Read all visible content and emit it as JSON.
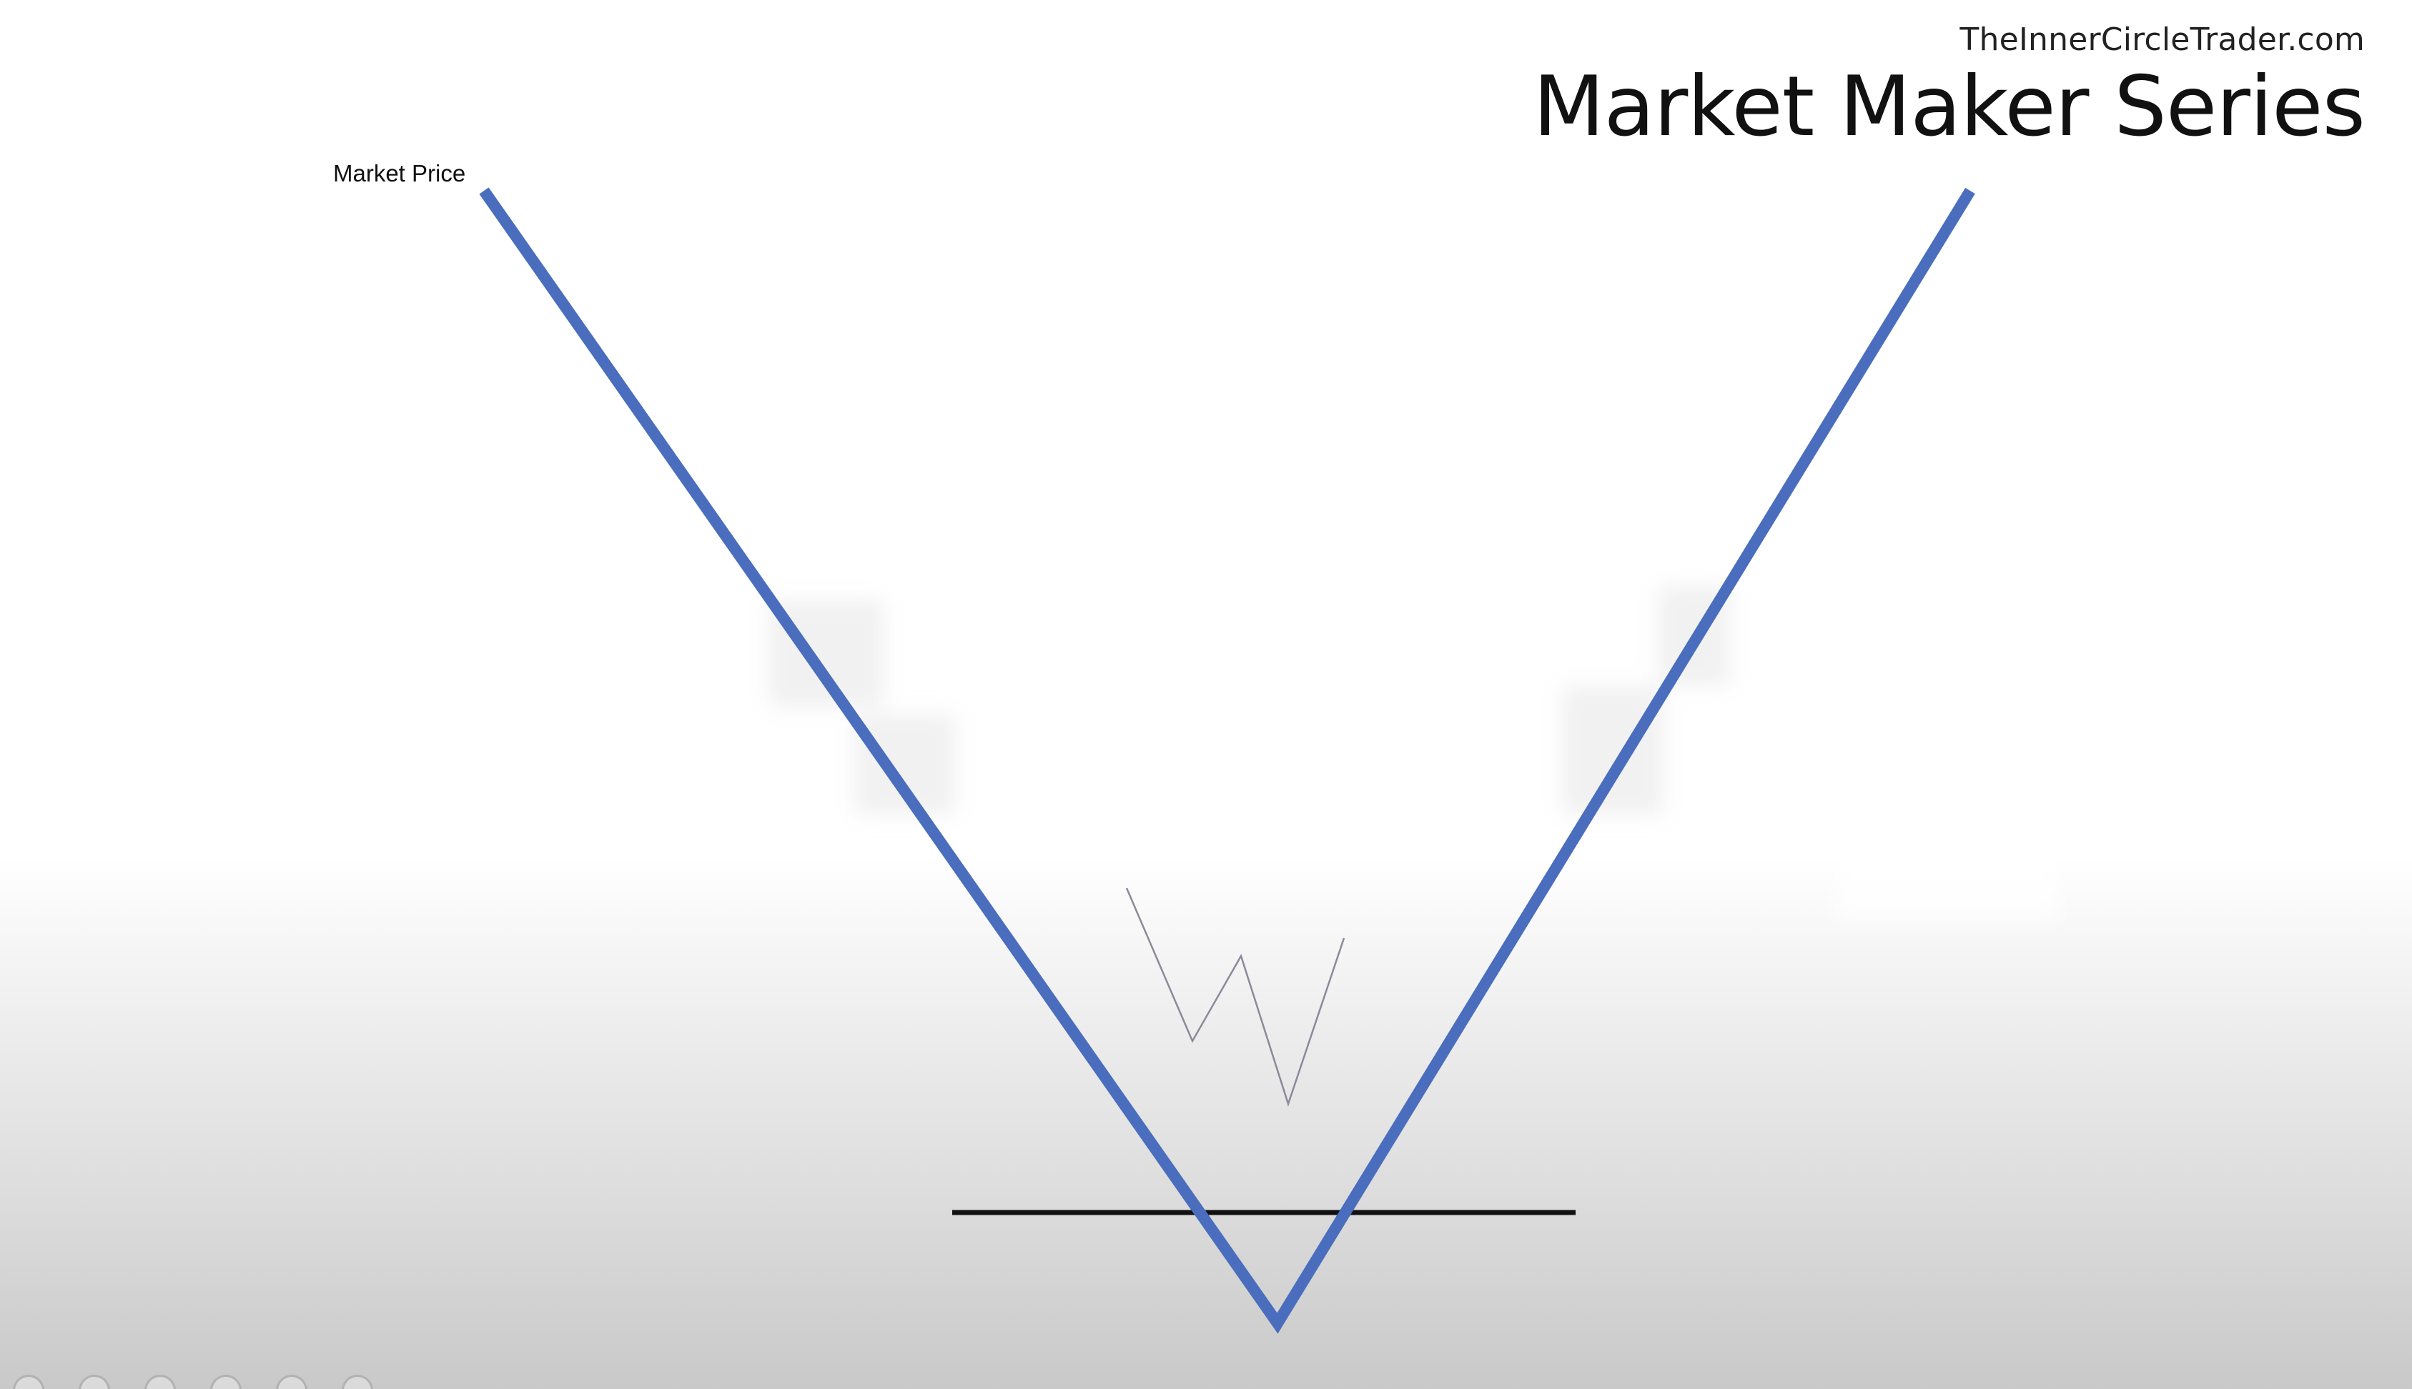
{
  "header": {
    "site_url": "TheInnerCircleTrader.com",
    "series_title": "Market Maker Series"
  },
  "diagram": {
    "price_line_label": "Market Price",
    "price_line_color": "#4a6ebd",
    "level_line_color": "#111111",
    "inset_w_color": "#8a8a9a"
  },
  "player_controls": {
    "dot_icons": [
      "nav-dot-icon",
      "nav-dot-icon",
      "nav-dot-icon",
      "nav-dot-icon",
      "nav-dot-icon",
      "nav-dot-icon"
    ]
  }
}
